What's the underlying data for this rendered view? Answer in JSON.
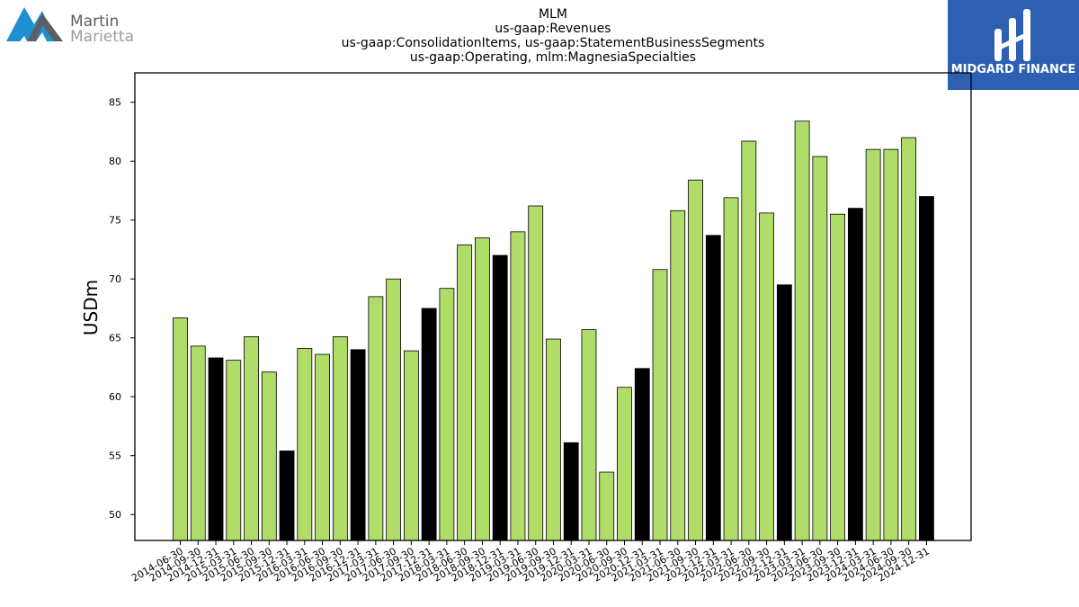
{
  "logos": {
    "left": {
      "line1": "Martin",
      "line2": "Marietta",
      "color_primary": "#1f8fd0",
      "color_secondary": "#5a5f66"
    },
    "right": {
      "text": "MIDGARD FINANCE",
      "bg": "#2d5fb3"
    }
  },
  "chart_data": {
    "type": "bar",
    "title": [
      "MLM",
      "us-gaap:Revenues",
      "us-gaap:ConsolidationItems, us-gaap:StatementBusinessSegments",
      "us-gaap:Operating, mlm:MagnesiaSpecialties"
    ],
    "xlabel": "",
    "ylabel": "USDm",
    "ylim": [
      47.8,
      87.5
    ],
    "yticks": [
      50,
      55,
      60,
      65,
      70,
      75,
      80,
      85
    ],
    "colors": {
      "quarter": "#b0dc6a",
      "year_end": "#000000",
      "edge": "#000000"
    },
    "categories": [
      "2014-06-30",
      "2014-09-30",
      "2014-12-31",
      "2015-03-31",
      "2015-06-30",
      "2015-09-30",
      "2015-12-31",
      "2016-03-31",
      "2016-06-30",
      "2016-09-30",
      "2016-12-31",
      "2017-03-31",
      "2017-06-30",
      "2017-09-30",
      "2017-12-31",
      "2018-03-31",
      "2018-06-30",
      "2018-09-30",
      "2018-12-31",
      "2019-03-31",
      "2019-06-30",
      "2019-09-30",
      "2019-12-31",
      "2020-03-31",
      "2020-06-30",
      "2020-09-30",
      "2020-12-31",
      "2021-03-31",
      "2021-06-30",
      "2021-09-30",
      "2021-12-31",
      "2022-03-31",
      "2022-06-30",
      "2022-09-30",
      "2022-12-31",
      "2023-03-31",
      "2023-06-30",
      "2023-09-30",
      "2023-12-31",
      "2024-03-31",
      "2024-06-30",
      "2024-09-30",
      "2024-12-31"
    ],
    "values": [
      66.7,
      64.3,
      63.3,
      63.1,
      65.1,
      62.1,
      55.4,
      64.1,
      63.6,
      65.1,
      64.0,
      68.5,
      70.0,
      63.9,
      67.5,
      69.2,
      72.9,
      73.5,
      72.0,
      74.0,
      76.2,
      64.9,
      56.1,
      65.7,
      53.6,
      60.8,
      62.4,
      70.8,
      75.8,
      78.4,
      73.7,
      76.9,
      81.7,
      75.6,
      69.5,
      83.4,
      80.4,
      75.5,
      76.0,
      81.0,
      81.0,
      82.0,
      77.0
    ]
  }
}
